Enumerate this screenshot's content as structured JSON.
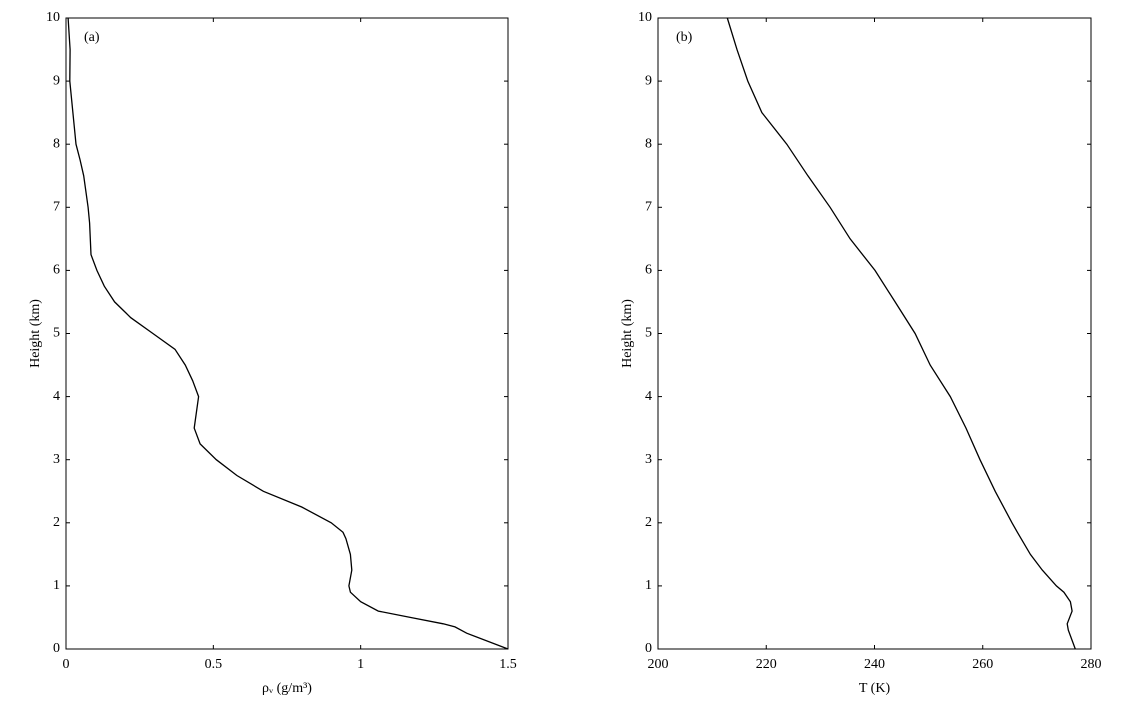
{
  "chart_data": [
    {
      "type": "line",
      "panel_label": "(a)",
      "x_label": "ρᵥ (g/m³)",
      "y_label": "Height (km)",
      "y": [
        10,
        9.5,
        9,
        8,
        7.75,
        7.5,
        7,
        6.75,
        6.25,
        6,
        5.75,
        5.5,
        5.25,
        5,
        4.75,
        4.5,
        4.25,
        4,
        3.5,
        3.25,
        3,
        2.75,
        2.5,
        2.25,
        2,
        1.85,
        1.75,
        1.5,
        1.25,
        1,
        0.9,
        0.75,
        0.6,
        0.5,
        0.4,
        0.35,
        0.25,
        0
      ],
      "series": [
        {
          "color": "#000000",
          "values": [
            0.007,
            0.014,
            0.013,
            0.034,
            0.048,
            0.06,
            0.075,
            0.08,
            0.085,
            0.105,
            0.13,
            0.165,
            0.22,
            0.295,
            0.37,
            0.405,
            0.43,
            0.45,
            0.435,
            0.455,
            0.51,
            0.58,
            0.67,
            0.8,
            0.9,
            0.94,
            0.95,
            0.965,
            0.97,
            0.96,
            0.965,
            1.0,
            1.06,
            1.17,
            1.28,
            1.32,
            1.36,
            1.5
          ]
        }
      ],
      "xlim": [
        0,
        1.5
      ],
      "xticks": [
        0,
        0.5,
        1,
        1.5
      ],
      "ylim": [
        0,
        10
      ],
      "yticks": [
        0,
        1,
        2,
        3,
        4,
        5,
        6,
        7,
        8,
        9,
        10
      ]
    },
    {
      "type": "line",
      "panel_label": "(b)",
      "x_label": "T (K)",
      "y_label": "Height (km)",
      "y": [
        10,
        9.5,
        9,
        8.5,
        8,
        7.5,
        7,
        6.5,
        6,
        5.5,
        5,
        4.5,
        4,
        3.5,
        3,
        2.5,
        2,
        1.85,
        1.5,
        1.25,
        1,
        0.9,
        0.75,
        0.6,
        0.4,
        0.3,
        0
      ],
      "series": [
        {
          "color": "#000000",
          "values": [
            212.8,
            214.6,
            216.6,
            219.2,
            223.8,
            227.7,
            231.8,
            235.5,
            240.1,
            243.8,
            247.5,
            250.3,
            254,
            256.9,
            259.5,
            262.3,
            265.4,
            266.4,
            268.8,
            271,
            273.6,
            275,
            276.2,
            276.5,
            275.6,
            275.8,
            277.1
          ]
        }
      ],
      "xlim": [
        200,
        280
      ],
      "xticks": [
        200,
        220,
        240,
        260,
        280
      ],
      "ylim": [
        0,
        10
      ],
      "yticks": [
        0,
        1,
        2,
        3,
        4,
        5,
        6,
        7,
        8,
        9,
        10
      ]
    }
  ]
}
